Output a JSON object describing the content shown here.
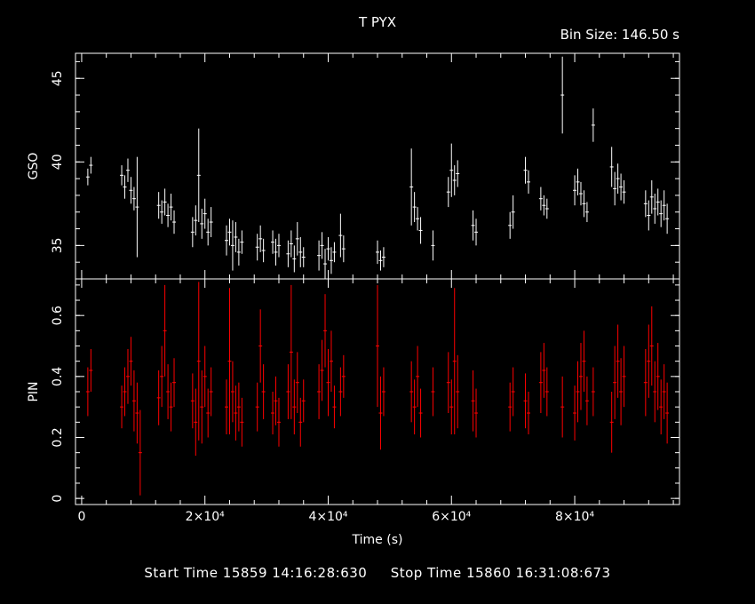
{
  "header": {
    "title": "T PYX",
    "bin_size": "Bin Size: 146.50 s"
  },
  "footer": {
    "start_time": "Start Time 15859 14:16:28:630",
    "stop_time": "Stop Time 15860 16:31:08:673"
  },
  "colors": {
    "gso": "#ffffff",
    "pin": "#ff0000",
    "axis": "#ffffff",
    "background": "#000000"
  },
  "chart_data": [
    {
      "type": "scatter",
      "ylabel": "GSO",
      "xlabel": "",
      "xlim": [
        -1000,
        97000
      ],
      "ylim": [
        33.0,
        46.5
      ],
      "yticks": [
        35,
        40,
        45
      ],
      "series": [
        {
          "x": [
            1000,
            1500,
            6500,
            7000,
            7500,
            8000,
            8500,
            9000,
            12500,
            13000,
            13500,
            14000,
            14500,
            15000,
            18000,
            18500,
            19000,
            19500,
            20000,
            20500,
            21000,
            23500,
            24000,
            24500,
            25000,
            25500,
            26000,
            28500,
            29000,
            29500,
            31000,
            31500,
            32000,
            33500,
            34000,
            34500,
            35000,
            35500,
            36000,
            38500,
            39000,
            39500,
            40000,
            40500,
            41000,
            42000,
            42500,
            48000,
            48500,
            49000,
            53500,
            54000,
            54500,
            55000,
            57000,
            59500,
            60000,
            60500,
            61000,
            63500,
            64000,
            69500,
            70000,
            72000,
            72500,
            74500,
            75000,
            75500,
            78000,
            80000,
            80500,
            81000,
            81500,
            82000,
            83000,
            86000,
            86500,
            87000,
            87500,
            88000,
            91500,
            92000,
            92500,
            93000,
            93500,
            94000,
            94500,
            95000
          ],
          "y": [
            39.1,
            39.8,
            39.2,
            38.5,
            39.5,
            38.3,
            37.8,
            37.3,
            37.4,
            37.0,
            37.6,
            36.8,
            37.3,
            36.4,
            35.8,
            36.5,
            39.2,
            36.3,
            36.9,
            35.8,
            36.4,
            35.3,
            35.8,
            35.0,
            35.5,
            34.6,
            35.2,
            34.9,
            35.4,
            34.7,
            35.2,
            34.6,
            35.0,
            34.5,
            35.1,
            34.2,
            35.4,
            34.6,
            34.3,
            34.4,
            35.0,
            33.9,
            34.8,
            34.1,
            34.6,
            35.6,
            34.8,
            34.6,
            34.1,
            34.3,
            38.5,
            37.3,
            36.6,
            35.9,
            35.0,
            38.2,
            39.5,
            38.9,
            39.3,
            36.2,
            35.8,
            36.2,
            37.0,
            39.5,
            38.8,
            37.8,
            37.4,
            37.2,
            44.0,
            38.3,
            38.8,
            38.1,
            37.5,
            37.0,
            42.2,
            39.7,
            38.4,
            39.0,
            38.5,
            38.2,
            37.5,
            36.8,
            37.9,
            37.2,
            37.6,
            36.9,
            37.4,
            36.6
          ],
          "err": [
            0.5,
            0.5,
            0.6,
            0.7,
            0.7,
            0.8,
            0.7,
            3.0,
            0.8,
            0.7,
            0.8,
            0.7,
            0.8,
            0.7,
            0.9,
            0.9,
            2.8,
            0.9,
            0.9,
            0.8,
            0.9,
            0.9,
            0.8,
            1.5,
            0.9,
            0.8,
            0.7,
            0.8,
            0.8,
            0.7,
            0.7,
            0.8,
            0.7,
            0.8,
            0.8,
            0.8,
            1.0,
            0.9,
            0.6,
            0.9,
            0.8,
            0.9,
            0.7,
            0.8,
            0.6,
            1.3,
            0.8,
            0.7,
            0.6,
            0.6,
            2.3,
            0.9,
            0.7,
            0.8,
            0.9,
            0.9,
            1.6,
            0.9,
            0.8,
            0.9,
            0.8,
            0.8,
            1.0,
            0.8,
            0.7,
            0.7,
            0.6,
            0.6,
            2.3,
            0.9,
            0.8,
            0.7,
            0.8,
            0.6,
            1.0,
            1.2,
            1.0,
            0.9,
            0.8,
            0.7,
            0.8,
            0.9,
            1.0,
            0.9,
            0.8,
            0.8,
            0.9,
            0.9
          ]
        }
      ]
    },
    {
      "type": "scatter",
      "ylabel": "PIN",
      "xlabel": "Time (s)",
      "xlim": [
        -1000,
        97000
      ],
      "ylim": [
        -0.02,
        0.72
      ],
      "yticks": [
        0,
        0.2,
        0.4,
        0.6
      ],
      "yticklabels": [
        "0",
        "0.2",
        "0.4",
        "0.6"
      ],
      "xticks": [
        0,
        20000,
        40000,
        60000,
        80000
      ],
      "xticklabels": [
        "0",
        "2×10⁴",
        "4×10⁴",
        "6×10⁴",
        "8×10⁴"
      ],
      "series": [
        {
          "x": [
            1000,
            1500,
            6500,
            7000,
            7500,
            8000,
            8500,
            9000,
            9500,
            12500,
            13000,
            13500,
            14000,
            14500,
            15000,
            18000,
            18500,
            19000,
            19500,
            20000,
            20500,
            21000,
            23500,
            24000,
            24500,
            25000,
            25500,
            26000,
            28500,
            29000,
            29500,
            31000,
            31500,
            32000,
            33500,
            34000,
            34500,
            35000,
            35500,
            36000,
            38500,
            39000,
            39500,
            40000,
            40500,
            41000,
            42000,
            42500,
            48000,
            48500,
            49000,
            53500,
            54000,
            54500,
            55000,
            57000,
            59500,
            60000,
            60500,
            61000,
            63500,
            64000,
            69500,
            70000,
            72000,
            72500,
            74500,
            75000,
            75500,
            78000,
            80000,
            80500,
            81000,
            81500,
            82000,
            83000,
            86000,
            86500,
            87000,
            87500,
            88000,
            91500,
            92000,
            92500,
            93000,
            93500,
            94000,
            94500,
            95000
          ],
          "y": [
            0.35,
            0.42,
            0.3,
            0.35,
            0.4,
            0.45,
            0.32,
            0.28,
            0.15,
            0.33,
            0.4,
            0.55,
            0.35,
            0.3,
            0.38,
            0.32,
            0.25,
            0.45,
            0.3,
            0.4,
            0.28,
            0.35,
            0.3,
            0.45,
            0.35,
            0.28,
            0.3,
            0.25,
            0.3,
            0.5,
            0.35,
            0.28,
            0.32,
            0.25,
            0.35,
            0.48,
            0.3,
            0.38,
            0.25,
            0.32,
            0.35,
            0.42,
            0.55,
            0.38,
            0.45,
            0.3,
            0.35,
            0.4,
            0.5,
            0.28,
            0.35,
            0.35,
            0.3,
            0.4,
            0.28,
            0.35,
            0.38,
            0.3,
            0.45,
            0.35,
            0.32,
            0.28,
            0.3,
            0.35,
            0.32,
            0.28,
            0.38,
            0.42,
            0.35,
            0.3,
            0.28,
            0.35,
            0.4,
            0.45,
            0.32,
            0.35,
            0.25,
            0.38,
            0.45,
            0.35,
            0.4,
            0.38,
            0.45,
            0.5,
            0.35,
            0.4,
            0.3,
            0.35,
            0.28
          ],
          "err": [
            0.08,
            0.07,
            0.07,
            0.08,
            0.09,
            0.08,
            0.1,
            0.1,
            0.14,
            0.09,
            0.1,
            0.15,
            0.09,
            0.08,
            0.08,
            0.09,
            0.11,
            0.26,
            0.12,
            0.1,
            0.08,
            0.08,
            0.09,
            0.24,
            0.1,
            0.09,
            0.08,
            0.08,
            0.08,
            0.12,
            0.09,
            0.07,
            0.08,
            0.08,
            0.09,
            0.22,
            0.09,
            0.1,
            0.08,
            0.07,
            0.09,
            0.1,
            0.12,
            0.11,
            0.1,
            0.07,
            0.08,
            0.07,
            0.2,
            0.12,
            0.08,
            0.1,
            0.09,
            0.1,
            0.08,
            0.08,
            0.1,
            0.09,
            0.24,
            0.12,
            0.1,
            0.08,
            0.08,
            0.08,
            0.09,
            0.07,
            0.1,
            0.09,
            0.08,
            0.1,
            0.09,
            0.1,
            0.11,
            0.1,
            0.08,
            0.08,
            0.1,
            0.12,
            0.12,
            0.11,
            0.1,
            0.11,
            0.12,
            0.13,
            0.1,
            0.11,
            0.09,
            0.09,
            0.1
          ]
        }
      ]
    }
  ]
}
